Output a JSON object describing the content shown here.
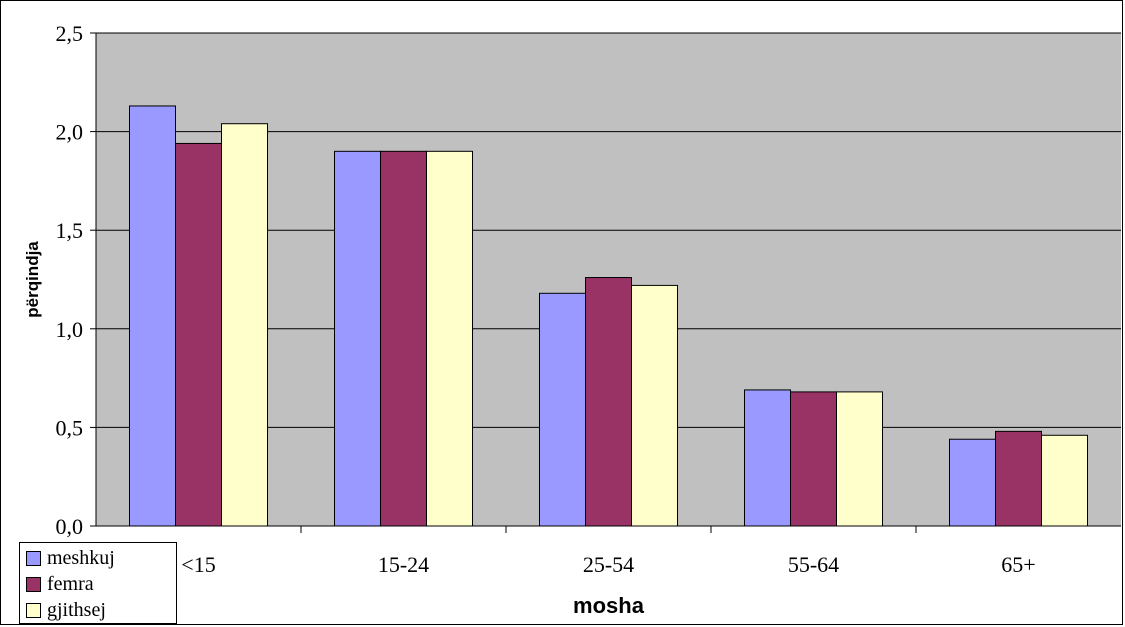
{
  "chart_data": {
    "type": "bar",
    "categories": [
      "<15",
      "15-24",
      "25-54",
      "55-64",
      "65+"
    ],
    "series": [
      {
        "name": "meshkuj",
        "values": [
          2.13,
          1.9,
          1.18,
          0.69,
          0.44
        ],
        "color": "#9999ff"
      },
      {
        "name": "femra",
        "values": [
          1.94,
          1.9,
          1.26,
          0.68,
          0.48
        ],
        "color": "#993366"
      },
      {
        "name": "gjithsej",
        "values": [
          2.04,
          1.9,
          1.22,
          0.68,
          0.46
        ],
        "color": "#ffffcc"
      }
    ],
    "title": "",
    "xlabel": "mosha",
    "ylabel": "përqindja",
    "ylim": [
      0,
      2.5
    ],
    "yticks": [
      "0,0",
      "0,5",
      "1,0",
      "1,5",
      "2,0",
      "2,5"
    ],
    "plot_background": "#c0c0c0",
    "grid": true,
    "legend_position": "bottom-left"
  }
}
